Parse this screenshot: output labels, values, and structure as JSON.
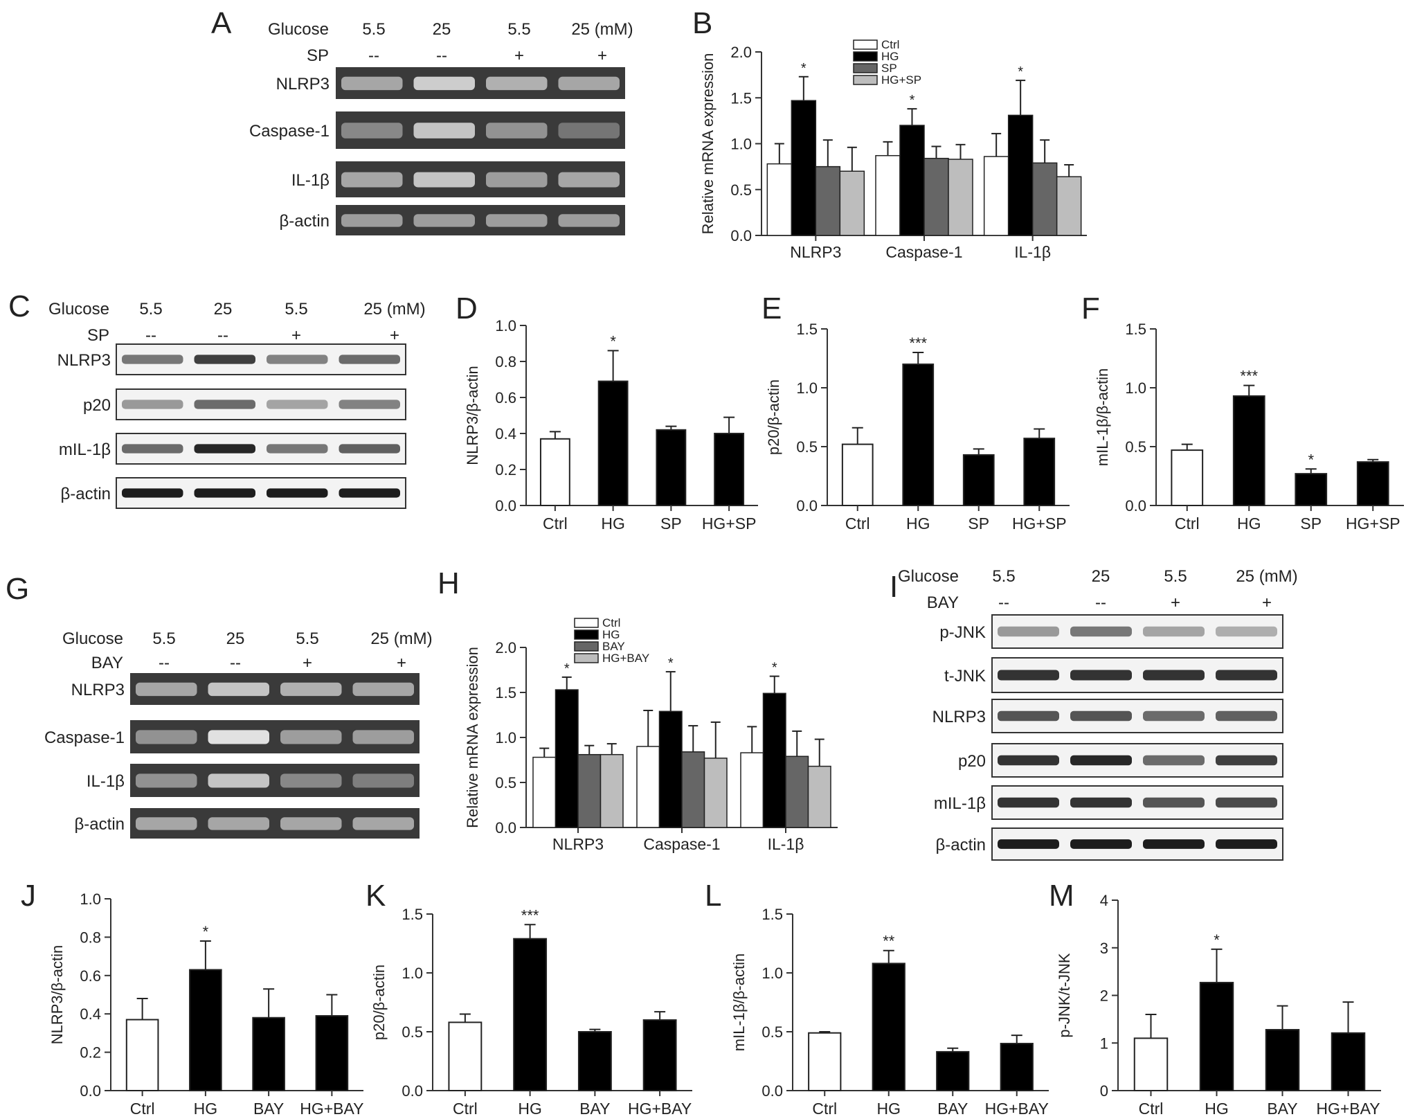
{
  "colors": {
    "white": "#ffffff",
    "black": "#000000",
    "dark_gray": "#666666",
    "light_gray": "#bdbdbd"
  },
  "blots": [
    {
      "letter": "A",
      "conditions": [
        {
          "label": "Glucose",
          "values": [
            "5.5",
            "25",
            "5.5",
            "25 (mM)"
          ]
        },
        {
          "label": "SP",
          "values": [
            "--",
            "--",
            "+",
            "+"
          ]
        }
      ],
      "bands": [
        "NLRP3",
        "Caspase-1",
        "IL-1β",
        "β-actin"
      ],
      "style": "gel"
    },
    {
      "letter": "C",
      "conditions": [
        {
          "label": "Glucose",
          "values": [
            "5.5",
            "25",
            "5.5",
            "25 (mM)"
          ]
        },
        {
          "label": "SP",
          "values": [
            "--",
            "--",
            "+",
            "+"
          ]
        }
      ],
      "bands": [
        "NLRP3",
        "p20",
        "mIL-1β",
        "β-actin"
      ],
      "style": "western"
    },
    {
      "letter": "G",
      "conditions": [
        {
          "label": "Glucose",
          "values": [
            "5.5",
            "25",
            "5.5",
            "25 (mM)"
          ]
        },
        {
          "label": "BAY",
          "values": [
            "--",
            "--",
            "+",
            "+"
          ]
        }
      ],
      "bands": [
        "NLRP3",
        "Caspase-1",
        "IL-1β",
        "β-actin"
      ],
      "style": "gel"
    },
    {
      "letter": "I",
      "conditions": [
        {
          "label": "Glucose",
          "values": [
            "5.5",
            "25",
            "5.5",
            "25 (mM)"
          ]
        },
        {
          "label": "BAY",
          "values": [
            "--",
            "--",
            "+",
            "+"
          ]
        }
      ],
      "bands": [
        "p-JNK",
        "t-JNK",
        "NLRP3",
        "p20",
        "mIL-1β",
        "β-actin"
      ],
      "style": "western"
    }
  ],
  "chart_data": [
    {
      "letter": "B",
      "type": "bar",
      "ylabel": "Relative mRNA expression",
      "ylim": [
        0,
        2.0
      ],
      "yticks": [
        "0.0",
        "0.5",
        "1.0",
        "1.5",
        "2.0"
      ],
      "categories": [
        "NLRP3",
        "Caspase-1",
        "IL-1β"
      ],
      "series": [
        {
          "name": "Ctrl",
          "color": "#ffffff",
          "values": [
            0.78,
            0.87,
            0.86
          ],
          "errors": [
            0.22,
            0.15,
            0.25
          ],
          "sig": [
            "",
            "",
            ""
          ]
        },
        {
          "name": "HG",
          "color": "#000000",
          "values": [
            1.47,
            1.2,
            1.31
          ],
          "errors": [
            0.26,
            0.18,
            0.38
          ],
          "sig": [
            "*",
            "*",
            "*"
          ]
        },
        {
          "name": "SP",
          "color": "#666666",
          "values": [
            0.75,
            0.84,
            0.79
          ],
          "errors": [
            0.29,
            0.13,
            0.25
          ],
          "sig": [
            "",
            "",
            ""
          ]
        },
        {
          "name": "HG+SP",
          "color": "#bdbdbd",
          "values": [
            0.7,
            0.83,
            0.64
          ],
          "errors": [
            0.26,
            0.16,
            0.13
          ],
          "sig": [
            "",
            "",
            ""
          ]
        }
      ]
    },
    {
      "letter": "D",
      "type": "bar",
      "ylabel": "NLRP3/β-actin",
      "ylim": [
        0,
        1.0
      ],
      "yticks": [
        "0.0",
        "0.2",
        "0.4",
        "0.6",
        "0.8",
        "1.0"
      ],
      "categories": [
        "Ctrl",
        "HG",
        "SP",
        "HG+SP"
      ],
      "colors": [
        "#ffffff",
        "#000000",
        "#000000",
        "#000000"
      ],
      "values": [
        0.37,
        0.69,
        0.42,
        0.4
      ],
      "errors": [
        0.04,
        0.17,
        0.02,
        0.09
      ],
      "sig": [
        "",
        "*",
        "",
        ""
      ]
    },
    {
      "letter": "E",
      "type": "bar",
      "ylabel": "p20/β-actin",
      "ylim": [
        0,
        1.5
      ],
      "yticks": [
        "0.0",
        "0.5",
        "1.0",
        "1.5"
      ],
      "categories": [
        "Ctrl",
        "HG",
        "SP",
        "HG+SP"
      ],
      "colors": [
        "#ffffff",
        "#000000",
        "#000000",
        "#000000"
      ],
      "values": [
        0.52,
        1.2,
        0.43,
        0.57
      ],
      "errors": [
        0.14,
        0.1,
        0.05,
        0.08
      ],
      "sig": [
        "",
        "***",
        "",
        ""
      ]
    },
    {
      "letter": "F",
      "type": "bar",
      "ylabel": "mIL-1β/β-actin",
      "ylim": [
        0,
        1.5
      ],
      "yticks": [
        "0.0",
        "0.5",
        "1.0",
        "1.5"
      ],
      "categories": [
        "Ctrl",
        "HG",
        "SP",
        "HG+SP"
      ],
      "colors": [
        "#ffffff",
        "#000000",
        "#000000",
        "#000000"
      ],
      "values": [
        0.47,
        0.93,
        0.27,
        0.37
      ],
      "errors": [
        0.05,
        0.09,
        0.04,
        0.02
      ],
      "sig": [
        "",
        "***",
        "*",
        ""
      ]
    },
    {
      "letter": "H",
      "type": "bar",
      "ylabel": "Relative mRNA expression",
      "ylim": [
        0,
        2.0
      ],
      "yticks": [
        "0.0",
        "0.5",
        "1.0",
        "1.5",
        "2.0"
      ],
      "categories": [
        "NLRP3",
        "Caspase-1",
        "IL-1β"
      ],
      "series": [
        {
          "name": "Ctrl",
          "color": "#ffffff",
          "values": [
            0.78,
            0.9,
            0.83
          ],
          "errors": [
            0.1,
            0.4,
            0.29
          ],
          "sig": [
            "",
            "",
            ""
          ]
        },
        {
          "name": "HG",
          "color": "#000000",
          "values": [
            1.53,
            1.29,
            1.49
          ],
          "errors": [
            0.14,
            0.44,
            0.19
          ],
          "sig": [
            "*",
            "*",
            "*"
          ]
        },
        {
          "name": "BAY",
          "color": "#666666",
          "values": [
            0.81,
            0.84,
            0.79
          ],
          "errors": [
            0.1,
            0.29,
            0.28
          ],
          "sig": [
            "",
            "",
            ""
          ]
        },
        {
          "name": "HG+BAY",
          "color": "#bdbdbd",
          "values": [
            0.81,
            0.77,
            0.68
          ],
          "errors": [
            0.12,
            0.4,
            0.3
          ],
          "sig": [
            "",
            "",
            ""
          ]
        }
      ]
    },
    {
      "letter": "J",
      "type": "bar",
      "ylabel": "NLRP3/β-actin",
      "ylim": [
        0,
        1.0
      ],
      "yticks": [
        "0.0",
        "0.2",
        "0.4",
        "0.6",
        "0.8",
        "1.0"
      ],
      "categories": [
        "Ctrl",
        "HG",
        "BAY",
        "HG+BAY"
      ],
      "colors": [
        "#ffffff",
        "#000000",
        "#000000",
        "#000000"
      ],
      "values": [
        0.37,
        0.63,
        0.38,
        0.39
      ],
      "errors": [
        0.11,
        0.15,
        0.15,
        0.11
      ],
      "sig": [
        "",
        "*",
        "",
        ""
      ]
    },
    {
      "letter": "K",
      "type": "bar",
      "ylabel": "p20/β-actin",
      "ylim": [
        0,
        1.5
      ],
      "yticks": [
        "0.0",
        "0.5",
        "1.0",
        "1.5"
      ],
      "categories": [
        "Ctrl",
        "HG",
        "BAY",
        "HG+BAY"
      ],
      "colors": [
        "#ffffff",
        "#000000",
        "#000000",
        "#000000"
      ],
      "values": [
        0.58,
        1.29,
        0.5,
        0.6
      ],
      "errors": [
        0.07,
        0.12,
        0.02,
        0.07
      ],
      "sig": [
        "",
        "***",
        "",
        ""
      ]
    },
    {
      "letter": "L",
      "type": "bar",
      "ylabel": "mIL-1β/β-actin",
      "ylim": [
        0,
        1.5
      ],
      "yticks": [
        "0.0",
        "0.5",
        "1.0",
        "1.5"
      ],
      "categories": [
        "Ctrl",
        "HG",
        "BAY",
        "HG+BAY"
      ],
      "colors": [
        "#ffffff",
        "#000000",
        "#000000",
        "#000000"
      ],
      "values": [
        0.49,
        1.08,
        0.33,
        0.4
      ],
      "errors": [
        0.01,
        0.11,
        0.03,
        0.07
      ],
      "sig": [
        "",
        "**",
        "",
        ""
      ]
    },
    {
      "letter": "M",
      "type": "bar",
      "ylabel": "p-JNK/t-JNK",
      "ylim": [
        0,
        4
      ],
      "yticks": [
        "0",
        "1",
        "2",
        "3",
        "4"
      ],
      "categories": [
        "Ctrl",
        "HG",
        "BAY",
        "HG+BAY"
      ],
      "colors": [
        "#ffffff",
        "#000000",
        "#000000",
        "#000000"
      ],
      "values": [
        1.1,
        2.27,
        1.28,
        1.21
      ],
      "errors": [
        0.5,
        0.7,
        0.5,
        0.65
      ],
      "sig": [
        "",
        "*",
        "",
        ""
      ]
    }
  ]
}
